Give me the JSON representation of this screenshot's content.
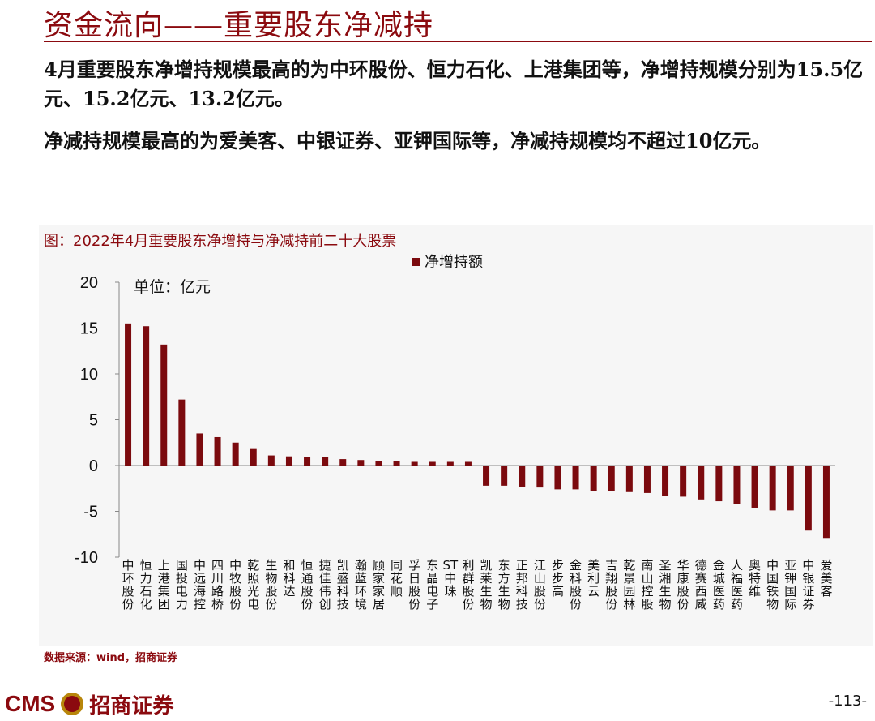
{
  "header": {
    "title": "资金流向——重要股东净减持"
  },
  "body": {
    "paragraph1": "4月重要股东净增持规模最高的为中环股份、恒力石化、上港集团等，净增持规模分别为15.5亿元、15.2亿元、13.2亿元。",
    "paragraph2": "净减持规模最高的为爱美客、中银证券、亚钾国际等，净减持规模均不超过10亿元。"
  },
  "figure": {
    "title": "图：2022年4月重要股东净增持与净减持前二十大股票",
    "source": "数据来源：wind，招商证券"
  },
  "chart_data": {
    "type": "bar",
    "legend": "净增持额",
    "legend_position": "top-center",
    "unit_note": "单位：亿元",
    "ylim": [
      -10,
      20
    ],
    "yticks": [
      20,
      15,
      10,
      5,
      0,
      -5,
      -10
    ],
    "grid": false,
    "colors": {
      "bar": "#7b0a0e"
    },
    "categories": [
      "中环股份",
      "恒力石化",
      "上港集团",
      "国投电力",
      "中远海控",
      "四川路桥",
      "中牧股份",
      "乾照光电",
      "生物股份",
      "和科达",
      "恒通股份",
      "捷佳伟创",
      "凯盛科技",
      "瀚蓝环境",
      "顾家家居",
      "同花顺",
      "孚日股份",
      "东晶电子",
      "ST中珠",
      "利群股份",
      "凯莱生物",
      "东方生物",
      "正邦科技",
      "江山股份",
      "步步高",
      "金科股份",
      "美利云",
      "吉翔股份",
      "乾景园林",
      "南山控股",
      "圣湘生物",
      "华康股份",
      "德赛西威",
      "金城医药",
      "人福医药",
      "奥特维",
      "中国铁物",
      "亚钾国际",
      "中银证券",
      "爱美客"
    ],
    "values": [
      15.5,
      15.2,
      13.2,
      7.2,
      3.5,
      3.1,
      2.5,
      1.8,
      1.1,
      1.0,
      0.9,
      0.9,
      0.7,
      0.6,
      0.5,
      0.5,
      0.4,
      0.4,
      0.4,
      0.4,
      -2.2,
      -2.2,
      -2.3,
      -2.4,
      -2.6,
      -2.6,
      -2.8,
      -2.8,
      -2.9,
      -3.0,
      -3.3,
      -3.4,
      -3.7,
      -3.9,
      -4.2,
      -4.6,
      -4.9,
      -4.9,
      -7.1,
      -7.9
    ]
  },
  "footer": {
    "logo_latin": "CMS",
    "logo_cn": "招商证券",
    "page": "-113-"
  }
}
